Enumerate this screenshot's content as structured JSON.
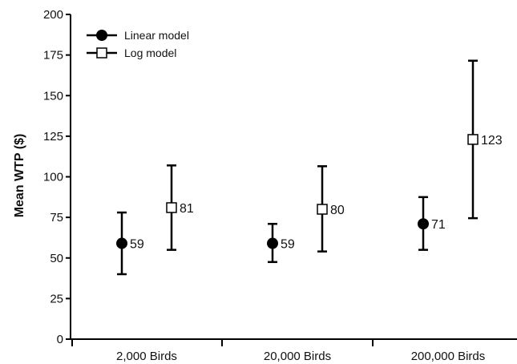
{
  "chart_data": {
    "type": "scatter",
    "title": "",
    "xlabel": "",
    "ylabel": "Mean WTP ($)",
    "ylim": [
      0,
      200
    ],
    "yticks": [
      0,
      25,
      50,
      75,
      100,
      125,
      150,
      175,
      200
    ],
    "categories": [
      "2,000 Birds",
      "20,000 Birds",
      "200,000 Birds"
    ],
    "grid": false,
    "legend_position": "top-left",
    "series": [
      {
        "name": "Linear model",
        "marker": "filled-circle",
        "color": "#000000",
        "values": [
          59,
          59,
          71
        ],
        "lower": [
          40,
          47.5,
          55
        ],
        "upper": [
          78,
          71,
          87.5
        ],
        "labels": [
          "59",
          "59",
          "71"
        ]
      },
      {
        "name": "Log model",
        "marker": "open-square",
        "color": "#000000",
        "values": [
          81,
          80,
          123
        ],
        "lower": [
          55,
          54,
          74.5
        ],
        "upper": [
          107,
          106.5,
          171.5
        ],
        "labels": [
          "81",
          "80",
          "123"
        ]
      }
    ]
  }
}
